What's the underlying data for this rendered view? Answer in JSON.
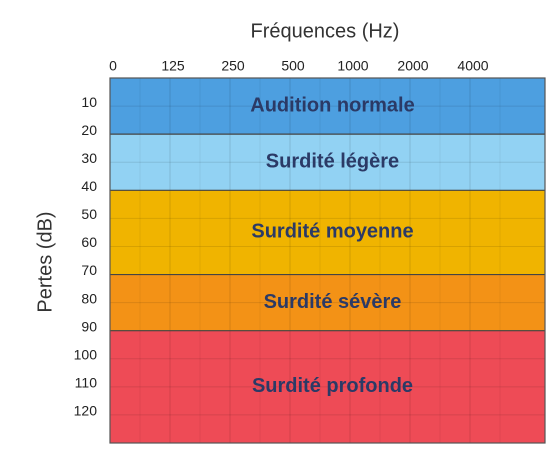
{
  "chart_data": {
    "type": "band",
    "title": "Fréquences (Hz)",
    "y_label": "Pertes (dB)",
    "categories": [
      "0",
      "125",
      "250",
      "500",
      "1000",
      "2000",
      "4000"
    ],
    "ylim": [
      0,
      130
    ],
    "yticks": [
      10,
      20,
      30,
      40,
      50,
      60,
      70,
      80,
      90,
      100,
      110,
      120
    ],
    "y_inverted": true,
    "grid": true,
    "bands": [
      {
        "label": "Audition normale",
        "from": 0,
        "to": 20,
        "color": "#4d9fe0"
      },
      {
        "label": "Surdité légère",
        "from": 20,
        "to": 40,
        "color": "#92d2f3"
      },
      {
        "label": "Surdité moyenne",
        "from": 40,
        "to": 70,
        "color": "#f0b400"
      },
      {
        "label": "Surdité sévère",
        "from": 70,
        "to": 90,
        "color": "#f39216"
      },
      {
        "label": "Surdité profonde",
        "from": 90,
        "to": 130,
        "color": "#ee4b56"
      }
    ]
  }
}
